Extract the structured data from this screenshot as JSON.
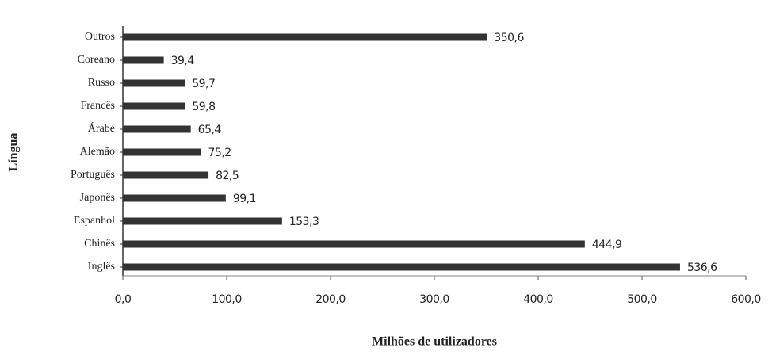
{
  "chart_data": {
    "type": "bar",
    "orientation": "horizontal",
    "categories": [
      "Outros",
      "Coreano",
      "Russo",
      "Francês",
      "Árabe",
      "Alemão",
      "Português",
      "Japonês",
      "Espanhol",
      "Chinês",
      "Inglês"
    ],
    "values": [
      350.6,
      39.4,
      59.7,
      59.8,
      65.4,
      75.2,
      82.5,
      99.1,
      153.3,
      444.9,
      536.6
    ],
    "value_labels": [
      "350,6",
      "39,4",
      "59,7",
      "59,8",
      "65,4",
      "75,2",
      "82,5",
      "99,1",
      "153,3",
      "444,9",
      "536,6"
    ],
    "color": "#333333",
    "xlim": [
      0,
      600
    ],
    "xticks": [
      {
        "value": 0,
        "label": "0,0"
      },
      {
        "value": 100,
        "label": "100,0"
      },
      {
        "value": 200,
        "label": "200,0"
      },
      {
        "value": 300,
        "label": "300,0"
      },
      {
        "value": 400,
        "label": "400,0"
      },
      {
        "value": 500,
        "label": "500,0"
      },
      {
        "value": 600,
        "label": "600,0"
      }
    ],
    "xlabel": "Milhões de utilizadores",
    "ylabel": "Língua"
  }
}
